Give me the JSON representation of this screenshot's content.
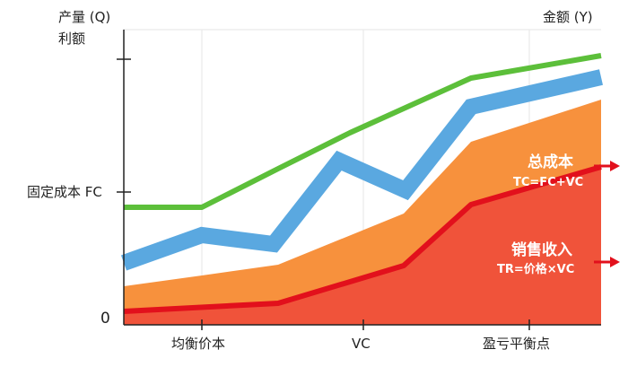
{
  "axes": {
    "left_title_line1": "产量 (Q)",
    "left_title_line2": "利额",
    "right_title": "金额 (Y)",
    "zero_label": "0",
    "fixed_cost_label": "固定成本 FC",
    "x_labels": [
      "均衡价本",
      "VC",
      "盈亏平衡点"
    ]
  },
  "annotations": {
    "total_cost_title": "总成本",
    "total_cost_formula": "TC=FC+VC",
    "revenue_title": "销售收入",
    "revenue_formula": "TR=价格×VC"
  },
  "colors": {
    "green_line": "#5cbf3a",
    "blue_band": "#5aa8e0",
    "orange_area": "#f7913d",
    "red_area": "#f0533a",
    "red_line": "#e2101c",
    "axis": "#222222"
  }
}
